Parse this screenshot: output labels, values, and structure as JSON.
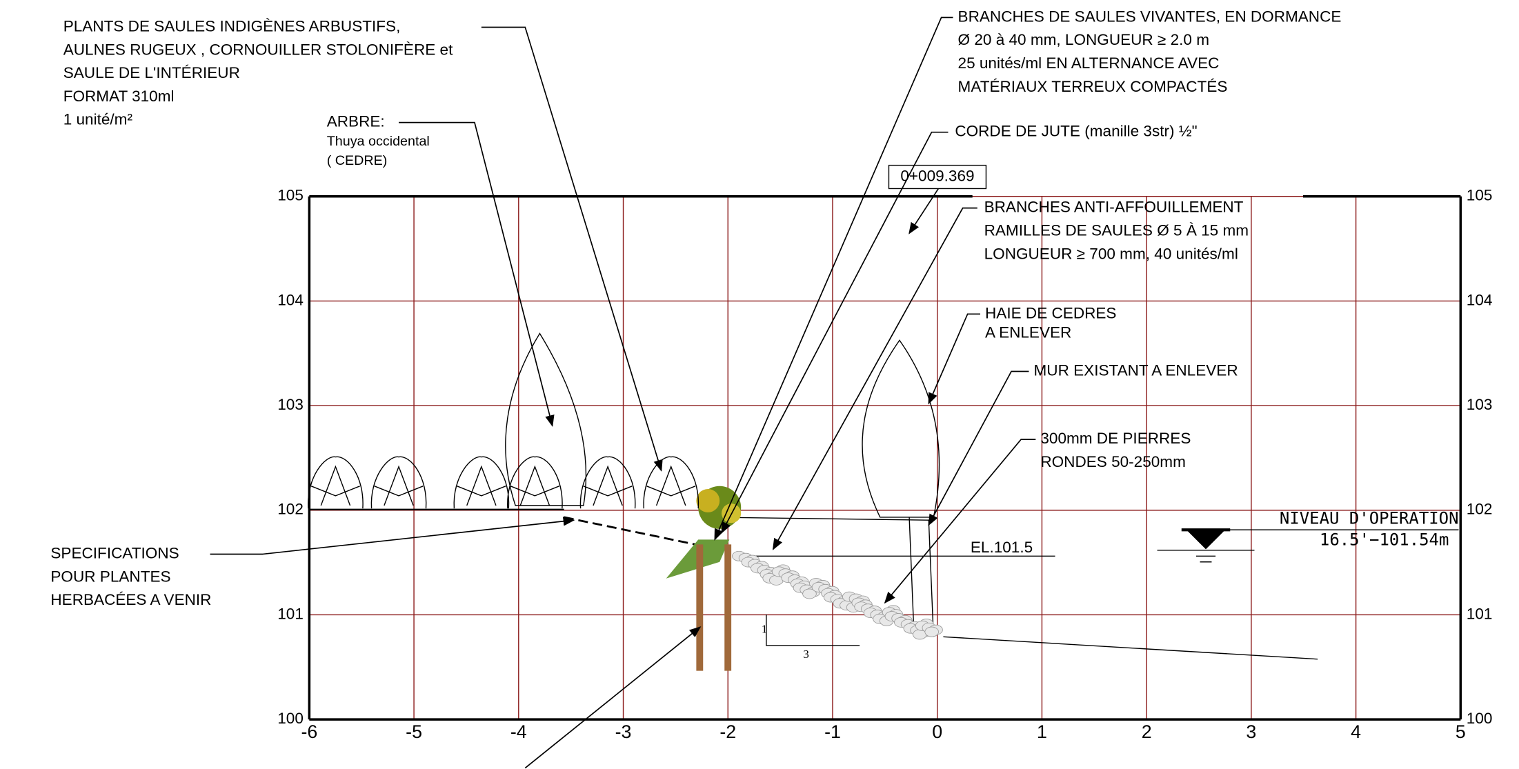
{
  "section_label": "0+009.369",
  "annotations": [
    {
      "lines": [
        "PLANTS DE SAULES INDIGÈNES ARBUSTIFS,",
        "AULNES RUGEUX , CORNOUILLER STOLONIFÈRE et",
        "SAULE DE L'INTÉRIEUR",
        "FORMAT 310ml",
        "1 unité/m²"
      ]
    },
    {
      "lines": [
        "ARBRE:",
        "Thuya occidental",
        "( CEDRE)"
      ]
    },
    {
      "lines": [
        "BRANCHES DE SAULES VIVANTES, EN DORMANCE",
        "Ø 20 à 40 mm, LONGUEUR  ≥ 2.0 m",
        "25 unités/ml EN ALTERNANCE AVEC",
        "MATÉRIAUX TERREUX COMPACTÉS"
      ]
    },
    {
      "lines": [
        "CORDE DE JUTE (manille 3str) ½\""
      ]
    },
    {
      "lines": [
        "BRANCHES ANTI-AFFOUILLEMENT",
        "RAMILLES DE SAULES Ø 5 À 15 mm",
        "LONGUEUR ≥ 700 mm, 40 unités/ml"
      ]
    },
    {
      "lines": [
        "HAIE DE CEDRES",
        "A ENLEVER"
      ]
    },
    {
      "lines": [
        "MUR EXISTANT A ENLEVER"
      ]
    },
    {
      "lines": [
        "300mm DE PIERRES",
        "RONDES 50-250mm"
      ]
    },
    {
      "lines": [
        "SPECIFICATIONS",
        "POUR PLANTES",
        "HERBACÉES A VENIR"
      ]
    }
  ],
  "x_axis": {
    "ticks": [
      -6,
      -5,
      -4,
      -3,
      -2,
      -1,
      0,
      1,
      2,
      3,
      4,
      5
    ]
  },
  "y_axis": {
    "ticks": [
      100,
      101,
      102,
      103,
      104,
      105
    ]
  },
  "elevation_label": "EL.101.5",
  "water_level": {
    "label": "NIVEAU D'OPERATION",
    "value": "16.5'−101.54m"
  },
  "slope": {
    "rise": "1",
    "run": "3"
  }
}
